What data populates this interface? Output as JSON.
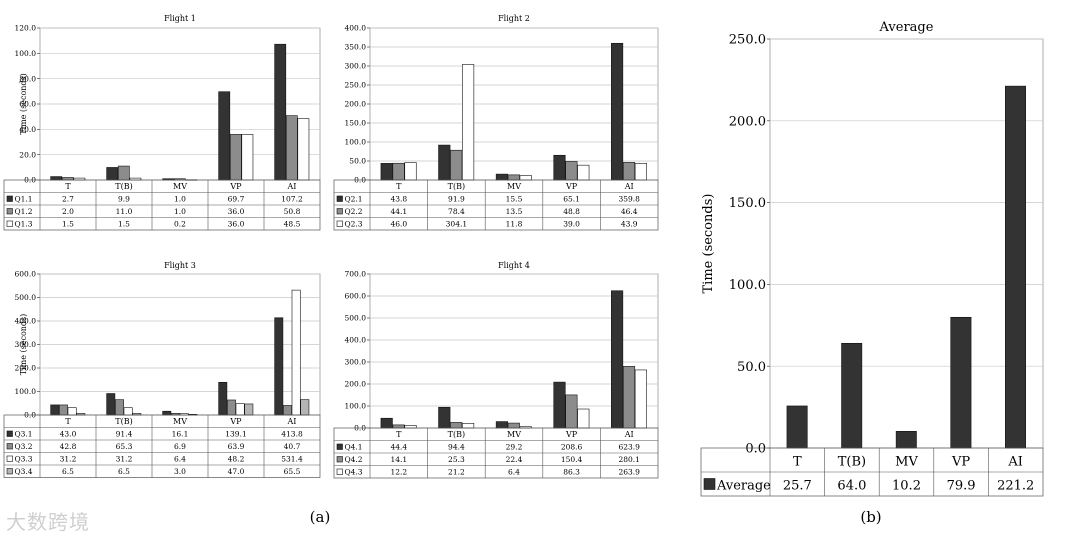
{
  "panel_labels": {
    "a": "(a)",
    "b": "(b)"
  },
  "watermark": "大数跨境",
  "colors": {
    "s1": "#333333",
    "s2": "#8c8c8c",
    "s3": "#ffffff",
    "s4": "#b4b4b4",
    "grid": "#c8c8c8",
    "axis": "#444444"
  },
  "chart_data": [
    {
      "id": "f1",
      "type": "bar",
      "title": "Flight 1",
      "ylabel": "Time (seconds)",
      "ylim": [
        0,
        120
      ],
      "yticks": [
        "0.0",
        "20.0",
        "40.0",
        "60.0",
        "80.0",
        "100.0",
        "120.0"
      ],
      "categories": [
        "T",
        "T(B)",
        "MV",
        "VP",
        "AI"
      ],
      "series": [
        {
          "name": "Q1.1",
          "values": [
            2.7,
            9.9,
            1.0,
            69.7,
            107.2
          ],
          "labels": [
            "2.7",
            "9.9",
            "1.0",
            "69.7",
            "107.2"
          ]
        },
        {
          "name": "Q1.2",
          "values": [
            2.0,
            11.0,
            1.0,
            36.0,
            50.8
          ],
          "labels": [
            "2.0",
            "11.0",
            "1.0",
            "36.0",
            "50.8"
          ]
        },
        {
          "name": "Q1.3",
          "values": [
            1.5,
            1.5,
            0.2,
            36.0,
            48.5
          ],
          "labels": [
            "1.5",
            "1.5",
            "0.2",
            "36.0",
            "48.5"
          ]
        }
      ]
    },
    {
      "id": "f2",
      "type": "bar",
      "title": "Flight 2",
      "ylabel": "",
      "ylim": [
        0,
        400
      ],
      "yticks": [
        "0.0",
        "50.0",
        "100.0",
        "150.0",
        "200.0",
        "250.0",
        "300.0",
        "350.0",
        "400.0"
      ],
      "categories": [
        "T",
        "T(B)",
        "MV",
        "VP",
        "AI"
      ],
      "series": [
        {
          "name": "Q2.1",
          "values": [
            43.8,
            91.9,
            15.5,
            65.1,
            359.8
          ],
          "labels": [
            "43.8",
            "91.9",
            "15.5",
            "65.1",
            "359.8"
          ]
        },
        {
          "name": "Q2.2",
          "values": [
            44.1,
            78.4,
            13.5,
            48.8,
            46.4
          ],
          "labels": [
            "44.1",
            "78.4",
            "13.5",
            "48.8",
            "46.4"
          ]
        },
        {
          "name": "Q2.3",
          "values": [
            46.0,
            304.1,
            11.8,
            39.0,
            43.9
          ],
          "labels": [
            "46.0",
            "304.1",
            "11.8",
            "39.0",
            "43.9"
          ]
        }
      ]
    },
    {
      "id": "f3",
      "type": "bar",
      "title": "Flight 3",
      "ylabel": "Time (seconds)",
      "ylim": [
        0,
        600
      ],
      "yticks": [
        "0.0",
        "100.0",
        "200.0",
        "300.0",
        "400.0",
        "500.0",
        "600.0"
      ],
      "categories": [
        "T",
        "T(B)",
        "MV",
        "VP",
        "AI"
      ],
      "series": [
        {
          "name": "Q3.1",
          "values": [
            43.0,
            91.4,
            16.1,
            139.1,
            413.8
          ],
          "labels": [
            "43.0",
            "91.4",
            "16.1",
            "139.1",
            "413.8"
          ]
        },
        {
          "name": "Q3.2",
          "values": [
            42.8,
            65.3,
            6.9,
            63.9,
            40.7
          ],
          "labels": [
            "42.8",
            "65.3",
            "6.9",
            "63.9",
            "40.7"
          ]
        },
        {
          "name": "Q3.3",
          "values": [
            31.2,
            31.2,
            6.4,
            48.2,
            531.4
          ],
          "labels": [
            "31.2",
            "31.2",
            "6.4",
            "48.2",
            "531.4"
          ]
        },
        {
          "name": "Q3.4",
          "values": [
            6.5,
            6.5,
            3.0,
            47.0,
            65.5
          ],
          "labels": [
            "6.5",
            "6.5",
            "3.0",
            "47.0",
            "65.5"
          ]
        }
      ]
    },
    {
      "id": "f4",
      "type": "bar",
      "title": "Flight 4",
      "ylabel": "",
      "ylim": [
        0,
        700
      ],
      "yticks": [
        "0.0",
        "100.0",
        "200.0",
        "300.0",
        "400.0",
        "500.0",
        "600.0",
        "700.0"
      ],
      "categories": [
        "T",
        "T(B)",
        "MV",
        "VP",
        "AI"
      ],
      "series": [
        {
          "name": "Q4.1",
          "values": [
            44.4,
            94.4,
            29.2,
            208.6,
            623.9
          ],
          "labels": [
            "44.4",
            "94.4",
            "29.2",
            "208.6",
            "623.9"
          ]
        },
        {
          "name": "Q4.2",
          "values": [
            14.1,
            25.3,
            22.4,
            150.4,
            280.1
          ],
          "labels": [
            "14.1",
            "25.3",
            "22.4",
            "150.4",
            "280.1"
          ]
        },
        {
          "name": "Q4.3",
          "values": [
            12.2,
            21.2,
            6.4,
            86.3,
            263.9
          ],
          "labels": [
            "12.2",
            "21.2",
            "6.4",
            "86.3",
            "263.9"
          ]
        }
      ]
    },
    {
      "id": "avg",
      "type": "bar",
      "title": "Average",
      "ylabel": "Time (seconds)",
      "ylim": [
        0,
        250
      ],
      "yticks": [
        "0.0",
        "50.0",
        "100.0",
        "150.0",
        "200.0",
        "250.0"
      ],
      "categories": [
        "T",
        "T(B)",
        "MV",
        "VP",
        "AI"
      ],
      "series": [
        {
          "name": "Average",
          "values": [
            25.7,
            64.0,
            10.2,
            79.9,
            221.2
          ],
          "labels": [
            "25.7",
            "64.0",
            "10.2",
            "79.9",
            "221.2"
          ]
        }
      ]
    }
  ]
}
